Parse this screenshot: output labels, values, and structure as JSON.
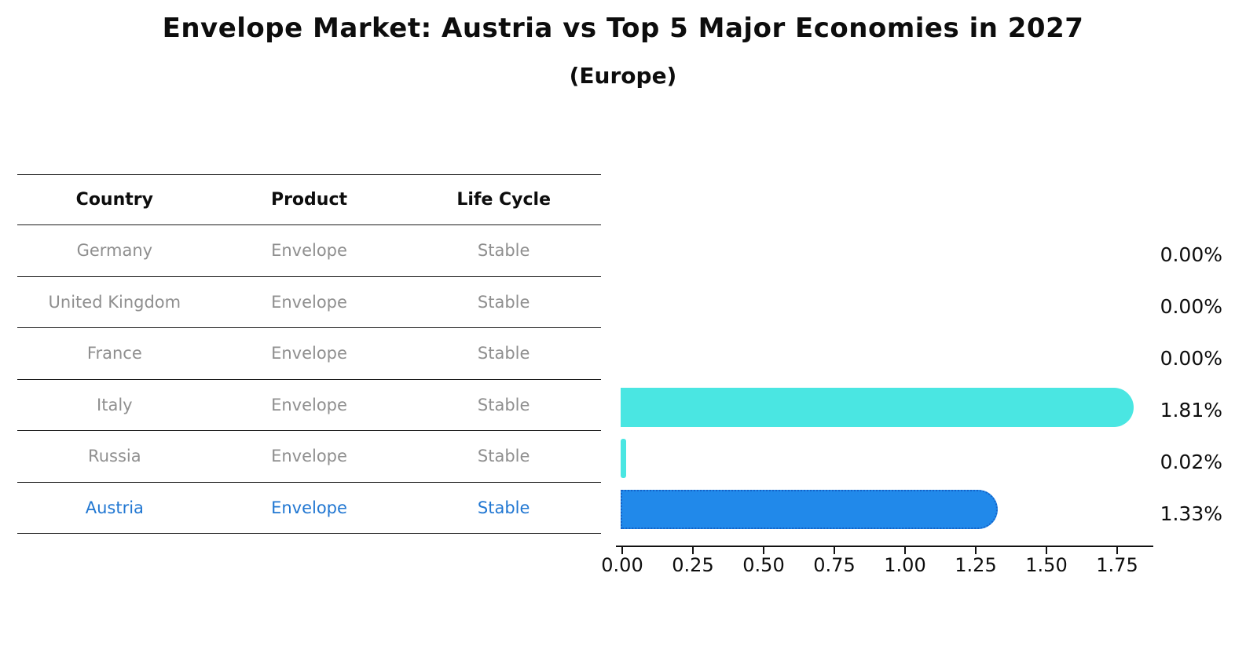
{
  "title": "Envelope Market: Austria vs Top 5 Major Economies in 2027",
  "subtitle": "(Europe)",
  "table": {
    "headers": [
      "Country",
      "Product",
      "Life Cycle"
    ],
    "rows": [
      {
        "country": "Germany",
        "product": "Envelope",
        "life_cycle": "Stable",
        "highlight": false
      },
      {
        "country": "United Kingdom",
        "product": "Envelope",
        "life_cycle": "Stable",
        "highlight": false
      },
      {
        "country": "France",
        "product": "Envelope",
        "life_cycle": "Stable",
        "highlight": false
      },
      {
        "country": "Italy",
        "product": "Envelope",
        "life_cycle": "Stable",
        "highlight": false
      },
      {
        "country": "Russia",
        "product": "Envelope",
        "life_cycle": "Stable",
        "highlight": false
      },
      {
        "country": "Austria",
        "product": "Envelope",
        "life_cycle": "Stable",
        "highlight": true
      }
    ]
  },
  "chart_data": {
    "type": "bar",
    "orientation": "horizontal",
    "title": "Envelope Market: Austria vs Top 5 Major Economies in 2027",
    "subtitle": "(Europe)",
    "categories": [
      "Germany",
      "United Kingdom",
      "France",
      "Italy",
      "Russia",
      "Austria"
    ],
    "values": [
      0.0,
      0.0,
      0.0,
      1.81,
      0.02,
      1.33
    ],
    "value_labels": [
      "0.00%",
      "0.00%",
      "0.00%",
      "1.81%",
      "0.02%",
      "1.33%"
    ],
    "x_ticks": [
      "0.00",
      "0.25",
      "0.50",
      "0.75",
      "1.00",
      "1.25",
      "1.50",
      "1.75"
    ],
    "xlim": [
      0,
      1.88
    ],
    "grid": false,
    "legend": "none",
    "highlight_category": "Austria",
    "unit": "%"
  },
  "colors": {
    "default_bar": "#4ae6e2",
    "highlight_bar": "#2189ea",
    "highlight_bar_border": "#1463c9",
    "highlight_text": "#2177d2",
    "row_text": "#8f8f8f",
    "header_text": "#0d0d0d",
    "axis": "#111111"
  }
}
